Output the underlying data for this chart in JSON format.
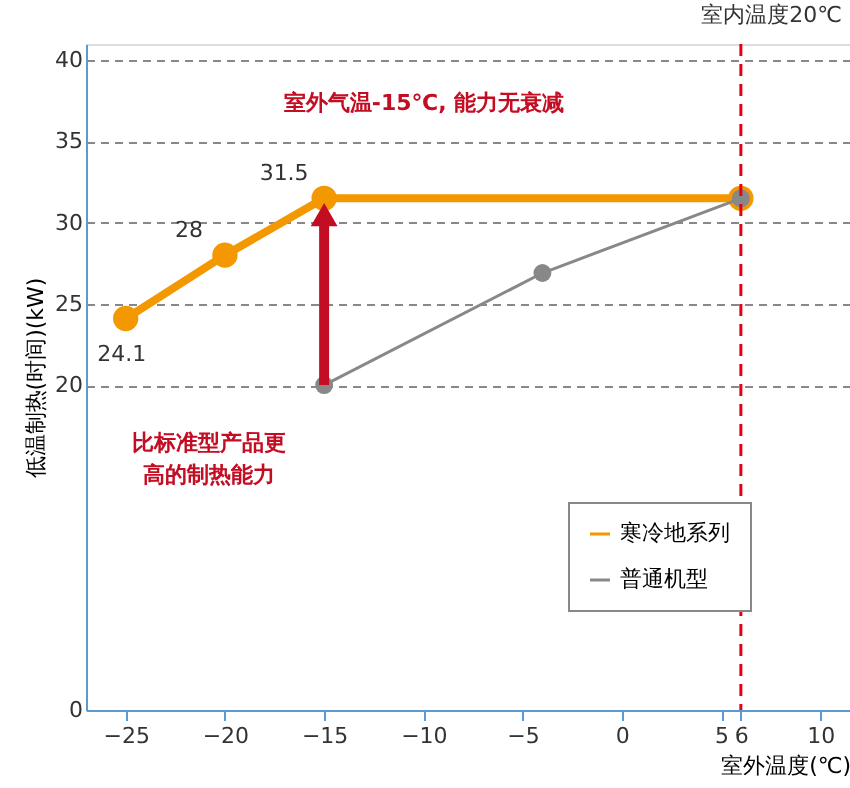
{
  "chart_data": {
    "type": "line",
    "xlabel": "室外温度(℃)",
    "ylabel": "低温制热(时间)(kW)",
    "x": [
      -25,
      -20,
      -15,
      6
    ],
    "series": [
      {
        "name": "寒冷地系列",
        "color": "#f39800",
        "values": [
          24.1,
          28,
          31.5,
          31.5
        ],
        "value_labels": [
          "24.1",
          "28",
          "31.5",
          null
        ]
      },
      {
        "name": "普通机型",
        "color": "#888888",
        "x": [
          -15,
          -4,
          6
        ],
        "values": [
          20,
          26.9,
          31.5
        ]
      }
    ],
    "xlim": [
      -27,
      11.5
    ],
    "xticks": [
      -25,
      -20,
      -15,
      -10,
      -5,
      0,
      5,
      6,
      10
    ],
    "ylim": [
      0,
      41
    ],
    "yticks": [
      0,
      20,
      25,
      30,
      35,
      40
    ],
    "ref_lines": [
      {
        "axis": "x",
        "value": 6,
        "color": "#e60012",
        "line_style": "dashed"
      }
    ],
    "annotations": [
      "室外气温-15℃, 能力无衰减",
      "比标准型产品更高的制热能力",
      "室内温度20℃"
    ],
    "grid": "y",
    "legend": "bottom right",
    "marker": "circle"
  }
}
